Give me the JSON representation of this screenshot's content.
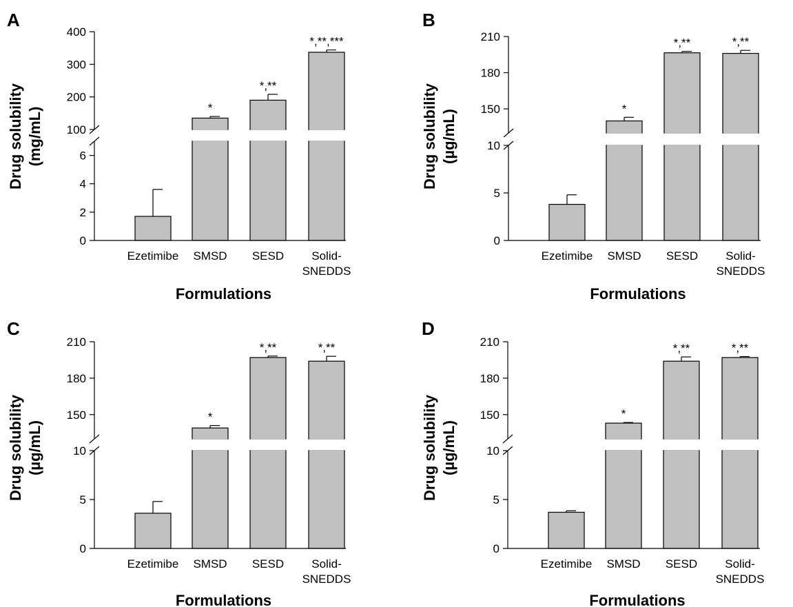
{
  "chart_data": [
    {
      "type": "bar",
      "panel": "A",
      "categories": [
        "Ezetimibe",
        "SMSD",
        "SESD",
        "Solid-SNEDDS"
      ],
      "values": [
        1.7,
        135,
        190,
        337
      ],
      "errors": [
        1.9,
        5,
        18,
        7
      ],
      "significance": [
        "",
        "*",
        "*,**",
        "*,**,***"
      ],
      "xlabel": "Formulations",
      "ylabel": [
        "Drug solubility",
        "(mg/mL)"
      ],
      "axis_break": true,
      "lower_ylim": [
        0,
        7
      ],
      "lower_ticks": [
        0,
        2,
        4,
        6
      ],
      "upper_ylim": [
        100,
        400
      ],
      "upper_ticks": [
        100,
        200,
        300,
        400
      ],
      "grid": false
    },
    {
      "type": "bar",
      "panel": "B",
      "categories": [
        "Ezetimibe",
        "SMSD",
        "SESD",
        "Solid-SNEDDS"
      ],
      "values": [
        3.8,
        140,
        196.5,
        196
      ],
      "errors": [
        1.0,
        3,
        1.2,
        2.5
      ],
      "significance": [
        "",
        "*",
        "*,**",
        "*,**"
      ],
      "xlabel": "Formulations",
      "ylabel": [
        "Drug solubility",
        "(µg/mL)"
      ],
      "axis_break": true,
      "lower_ylim": [
        0,
        10
      ],
      "lower_ticks": [
        0,
        5,
        10
      ],
      "upper_ylim": [
        130,
        210
      ],
      "upper_ticks": [
        150,
        180,
        210
      ],
      "grid": false
    },
    {
      "type": "bar",
      "panel": "C",
      "categories": [
        "Ezetimibe",
        "SMSD",
        "SESD",
        "Solid-SNEDDS"
      ],
      "values": [
        3.6,
        139,
        197,
        194
      ],
      "errors": [
        1.2,
        2,
        1.2,
        4
      ],
      "significance": [
        "",
        "*",
        "*,**",
        "*,**"
      ],
      "xlabel": "Formulations",
      "ylabel": [
        "Drug solubility",
        "(µg/mL)"
      ],
      "axis_break": true,
      "lower_ylim": [
        0,
        10
      ],
      "lower_ticks": [
        0,
        5,
        10
      ],
      "upper_ylim": [
        130,
        210
      ],
      "upper_ticks": [
        150,
        180,
        210
      ],
      "grid": false
    },
    {
      "type": "bar",
      "panel": "D",
      "categories": [
        "Ezetimibe",
        "SMSD",
        "SESD",
        "Solid-SNEDDS"
      ],
      "values": [
        3.7,
        143,
        194,
        197
      ],
      "errors": [
        0.15,
        0.5,
        3.5,
        0.8
      ],
      "significance": [
        "",
        "*",
        "*,**",
        "*,**"
      ],
      "xlabel": "Formulations",
      "ylabel": [
        "Drug solubility",
        "(µg/mL)"
      ],
      "axis_break": true,
      "lower_ylim": [
        0,
        10
      ],
      "lower_ticks": [
        0,
        5,
        10
      ],
      "upper_ylim": [
        130,
        210
      ],
      "upper_ticks": [
        150,
        180,
        210
      ],
      "grid": false
    }
  ],
  "colors": {
    "bar_fill": "#c0c0c0",
    "bar_stroke": "#000000",
    "axis": "#000000"
  }
}
